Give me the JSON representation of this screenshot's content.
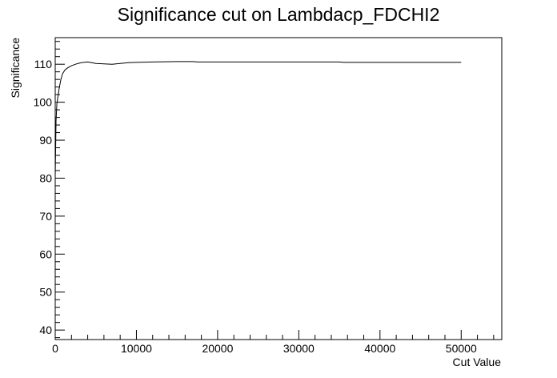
{
  "chart_data": {
    "type": "line",
    "title": "Significance cut on Lambdacp_FDCHI2",
    "xlabel": "Cut Value",
    "ylabel": "Significance",
    "xlim": [
      0,
      55000
    ],
    "ylim": [
      37.5,
      117
    ],
    "x_ticks": [
      0,
      10000,
      20000,
      30000,
      40000,
      50000
    ],
    "x_tick_labels": [
      "0",
      "10000",
      "20000",
      "30000",
      "40000",
      "50000"
    ],
    "y_ticks": [
      40,
      50,
      60,
      70,
      80,
      90,
      100,
      110
    ],
    "y_tick_labels": [
      "40",
      "50",
      "60",
      "70",
      "80",
      "90",
      "100",
      "110"
    ],
    "grid": false,
    "series": [
      {
        "x": [
          0,
          100,
          200,
          300,
          500,
          700,
          900,
          1200,
          1500,
          2000,
          2500,
          3000,
          3500,
          4000,
          4500,
          5000,
          6000,
          7000,
          8000,
          9000,
          10000,
          12000,
          15000,
          17000,
          17500,
          20000,
          25000,
          30000,
          35000,
          35500,
          40000,
          45000,
          50000
        ],
        "y": [
          80.5,
          95.0,
          99.5,
          101.0,
          103.8,
          106.0,
          107.5,
          108.5,
          109.0,
          109.6,
          110.0,
          110.3,
          110.5,
          110.6,
          110.4,
          110.2,
          110.1,
          110.0,
          110.2,
          110.4,
          110.5,
          110.6,
          110.7,
          110.7,
          110.6,
          110.6,
          110.6,
          110.6,
          110.6,
          110.5,
          110.5,
          110.5,
          110.5
        ]
      }
    ]
  }
}
